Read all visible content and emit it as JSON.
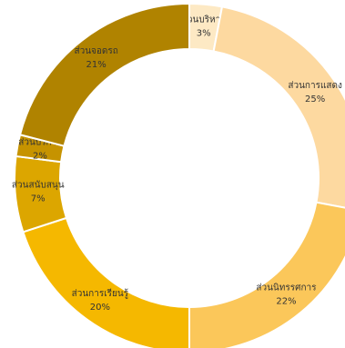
{
  "chart_data": {
    "type": "pie",
    "donut": true,
    "title": "",
    "legend": "none",
    "slices": [
      {
        "label": "ส่วนบริหาร",
        "value": 3,
        "pct_label": "3%",
        "color": "#fde9c4"
      },
      {
        "label": "ส่วนการแสดง",
        "value": 25,
        "pct_label": "25%",
        "color": "#fdd9a0"
      },
      {
        "label": "ส่วนนิทรรศการ",
        "value": 22,
        "pct_label": "22%",
        "color": "#fbc75a"
      },
      {
        "label": "ส่วนการเรียนรู้",
        "value": 20,
        "pct_label": "20%",
        "color": "#f5b800"
      },
      {
        "label": "ส่วนสนับสนุน",
        "value": 7,
        "pct_label": "7%",
        "color": "#dca600"
      },
      {
        "label": "ส่วนบริการ",
        "value": 2,
        "pct_label": "2%",
        "color": "#c69300"
      },
      {
        "label": "ส่วนจอดรถ",
        "value": 21,
        "pct_label": "21%",
        "color": "#b08300"
      }
    ]
  }
}
